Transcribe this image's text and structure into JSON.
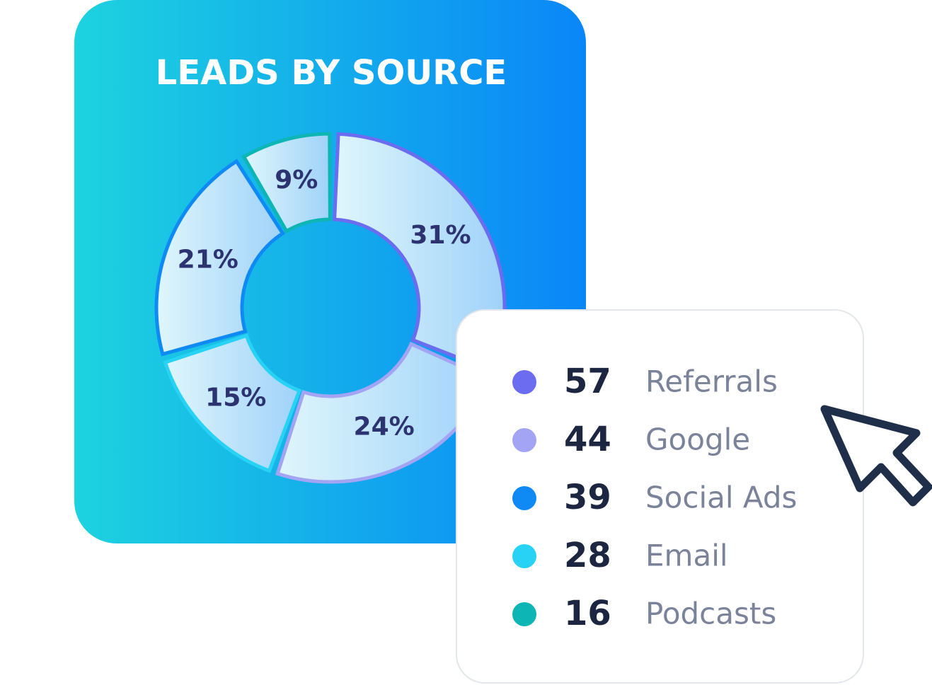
{
  "chart_data": {
    "type": "donut",
    "title": "LEADS BY SOURCE",
    "values": [
      31,
      24,
      15,
      21,
      9
    ],
    "value_labels": [
      "31%",
      "24%",
      "15%",
      "21%",
      "9%"
    ],
    "colors": [
      "#6c6cf0",
      "#a4a4f5",
      "#27d2f4",
      "#0f8af5",
      "#0eb5b5"
    ]
  },
  "legend": {
    "items": [
      {
        "count": 57,
        "label": "Referrals",
        "color": "#6c6cf0"
      },
      {
        "count": 44,
        "label": "Google",
        "color": "#a4a4f5"
      },
      {
        "count": 39,
        "label": "Social Ads",
        "color": "#0f8af5"
      },
      {
        "count": 28,
        "label": "Email",
        "color": "#27d2f4"
      },
      {
        "count": 16,
        "label": "Podcasts",
        "color": "#0eb5b5"
      }
    ]
  }
}
